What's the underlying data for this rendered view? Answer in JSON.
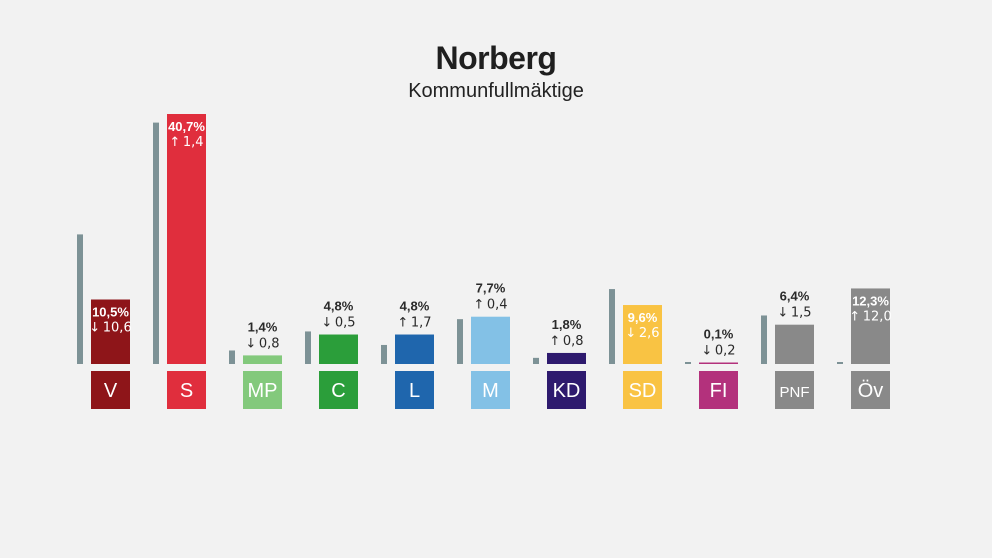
{
  "chart_data": {
    "type": "bar",
    "title": "Norberg",
    "subtitle": "Kommunfullmäktige",
    "ylim": [
      0,
      45
    ],
    "colors": {
      "previous": "#7d9296",
      "arrow_up": "↑",
      "arrow_down": "↓"
    },
    "parties": [
      {
        "label": "V",
        "value": 10.5,
        "previous": 21.1,
        "value_text": "10,5%",
        "change_text": "10,6",
        "direction": "down",
        "color": "#8e1519",
        "label_inside": true
      },
      {
        "label": "S",
        "value": 40.7,
        "previous": 39.3,
        "value_text": "40,7%",
        "change_text": "1,4",
        "direction": "up",
        "color": "#e02e3d",
        "label_inside": true
      },
      {
        "label": "MP",
        "value": 1.4,
        "previous": 2.2,
        "value_text": "1,4%",
        "change_text": "0,8",
        "direction": "down",
        "color": "#83c97c",
        "label_inside": false
      },
      {
        "label": "C",
        "value": 4.8,
        "previous": 5.3,
        "value_text": "4,8%",
        "change_text": "0,5",
        "direction": "down",
        "color": "#2b9e3a",
        "label_inside": false
      },
      {
        "label": "L",
        "value": 4.8,
        "previous": 3.1,
        "value_text": "4,8%",
        "change_text": "1,7",
        "direction": "up",
        "color": "#1f66ad",
        "label_inside": false
      },
      {
        "label": "M",
        "value": 7.7,
        "previous": 7.3,
        "value_text": "7,7%",
        "change_text": "0,4",
        "direction": "up",
        "color": "#83c1e6",
        "label_inside": false
      },
      {
        "label": "KD",
        "value": 1.8,
        "previous": 1.0,
        "value_text": "1,8%",
        "change_text": "0,8",
        "direction": "up",
        "color": "#2e1a6e",
        "label_inside": false
      },
      {
        "label": "SD",
        "value": 9.6,
        "previous": 12.2,
        "value_text": "9,6%",
        "change_text": "2,6",
        "direction": "down",
        "color": "#f9c343",
        "label_inside": true
      },
      {
        "label": "FI",
        "value": 0.1,
        "previous": 0.3,
        "value_text": "0,1%",
        "change_text": "0,2",
        "direction": "down",
        "color": "#b3317c",
        "label_inside": false
      },
      {
        "label": "PNF",
        "value": 6.4,
        "previous": 7.9,
        "value_text": "6,4%",
        "change_text": "1,5",
        "direction": "down",
        "color": "#898989",
        "label_inside": false
      },
      {
        "label": "Öv",
        "value": 12.3,
        "previous": 0.3,
        "value_text": "12,3%",
        "change_text": "12,0",
        "direction": "up",
        "color": "#898989",
        "label_inside": true
      }
    ]
  }
}
